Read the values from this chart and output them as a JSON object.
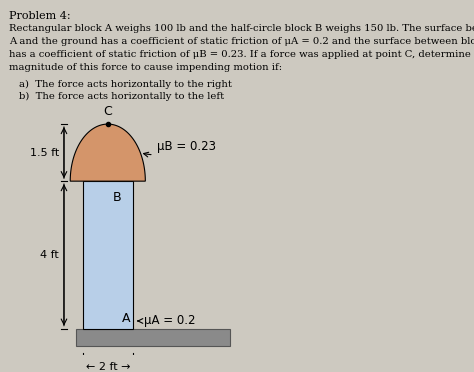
{
  "title": "Problem 4:",
  "body_lines": [
    "Rectangular block A weighs 100 lb and the half-circle block B weighs 150 lb. The surface between block",
    "A and the ground has a coefficient of static friction of μA = 0.2 and the surface between block A and B",
    "has a coefficient of static friction of μB = 0.23. If a force was applied at point C, determine the minimum",
    "magnitude of this force to cause impending motion if:"
  ],
  "list_items": [
    "a)  The force acts horizontally to the right",
    "b)  The force acts horizontally to the left"
  ],
  "rect_color": "#b8cfe8",
  "semicircle_color": "#d4956a",
  "ground_color": "#8a8a8a",
  "background_color": "#cdc9c0",
  "label_muB": "μB = 0.23",
  "label_muA": "μA = 0.2",
  "label_15ft": "1.5 ft",
  "label_4ft": "4 ft",
  "label_2ft": "2 ft —",
  "label_A": "A",
  "label_B": "B",
  "label_C": "C",
  "text_color": "#000000",
  "fontsize_body": 7.5,
  "fontsize_labels": 9,
  "fontsize_dim": 8
}
